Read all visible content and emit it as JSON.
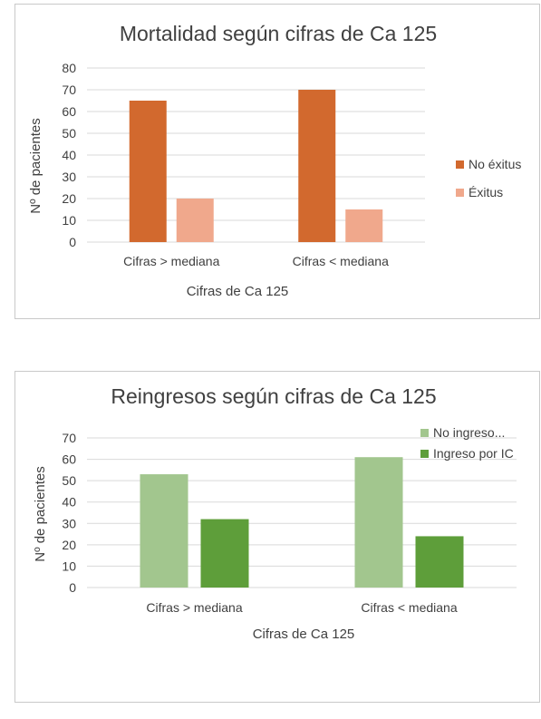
{
  "chart_data": [
    {
      "type": "bar",
      "title": "Mortalidad según cifras de Ca 125",
      "xlabel": "Cifras de Ca 125",
      "ylabel": "Nº de pacientes",
      "categories": [
        "Cifras > mediana",
        "Cifras < mediana"
      ],
      "series": [
        {
          "name": "No éxitus",
          "values": [
            65,
            70
          ],
          "color": "#D2692E"
        },
        {
          "name": "Éxitus",
          "values": [
            20,
            15
          ],
          "color": "#F0A88C"
        }
      ],
      "ylim": [
        0,
        80
      ],
      "yticks": [
        "0",
        "10",
        "20",
        "30",
        "40",
        "50",
        "60",
        "70",
        "80"
      ],
      "grid": true,
      "legend_position": "right"
    },
    {
      "type": "bar",
      "title": "Reingresos según cifras de Ca 125",
      "xlabel": "Cifras de Ca 125",
      "ylabel": "Nº de pacientes",
      "categories": [
        "Cifras > mediana",
        "Cifras < mediana"
      ],
      "series": [
        {
          "name": "No ingreso...",
          "values": [
            53,
            61
          ],
          "color": "#A2C68E"
        },
        {
          "name": "Ingreso por IC",
          "values": [
            32,
            24
          ],
          "color": "#5E9E3A"
        }
      ],
      "ylim": [
        0,
        70
      ],
      "yticks": [
        "0",
        "10",
        "20",
        "30",
        "40",
        "50",
        "60",
        "70"
      ],
      "grid": true,
      "legend_position": "top-right"
    }
  ]
}
